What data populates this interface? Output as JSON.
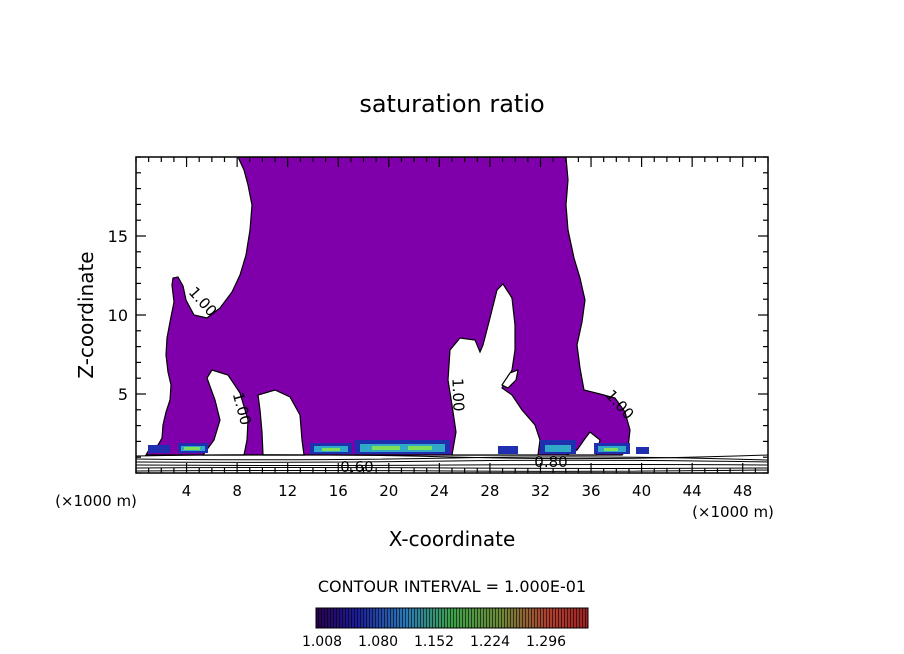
{
  "chart_data": {
    "type": "contour",
    "title": "saturation ratio",
    "xlabel": "X-coordinate",
    "ylabel": "Z-coordinate",
    "x_unit_left": "(×1000 m)",
    "x_unit_right": "(×1000 m)",
    "xlim": [
      0,
      50
    ],
    "ylim": [
      0,
      20
    ],
    "xticks": [
      4,
      8,
      12,
      16,
      20,
      24,
      28,
      32,
      36,
      40,
      44,
      48
    ],
    "yticks": [
      5,
      10,
      15
    ],
    "contour_interval_text": "CONTOUR INTERVAL = 1.000E-01",
    "contour_labels": [
      {
        "text": "1.00",
        "x": 5.3,
        "z": 10.7
      },
      {
        "text": "1.00",
        "x": 7.8,
        "z": 4.2
      },
      {
        "text": "1.00",
        "x": 24.2,
        "z": 4.9
      },
      {
        "text": "1.00",
        "x": 38.6,
        "z": 4.1
      },
      {
        "text": "0.60",
        "x": 17.3,
        "z": 0.4
      },
      {
        "text": "0.80",
        "x": 33.5,
        "z": 0.7
      }
    ],
    "colorbar": {
      "tick_labels": [
        "1.008",
        "1.080",
        "1.152",
        "1.224",
        "1.296"
      ],
      "fill_color": "#7f00aa"
    }
  }
}
